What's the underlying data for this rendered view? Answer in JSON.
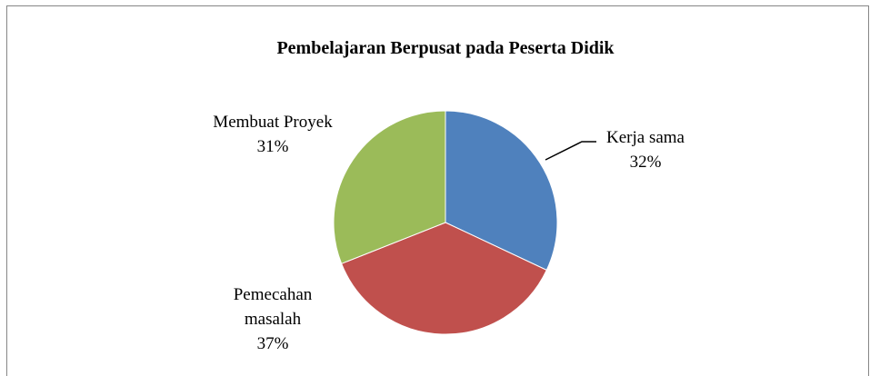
{
  "chart_data": {
    "type": "pie",
    "title": "Pembelajaran Berpusat pada Peserta Didik",
    "categories": [
      "Kerja sama",
      "Pemecahan masalah",
      "Membuat Proyek"
    ],
    "values": [
      32,
      37,
      31
    ],
    "value_labels": [
      "32%",
      "37%",
      "31%"
    ],
    "colors": [
      "#4f81bd",
      "#c0504d",
      "#9bbb59"
    ]
  }
}
